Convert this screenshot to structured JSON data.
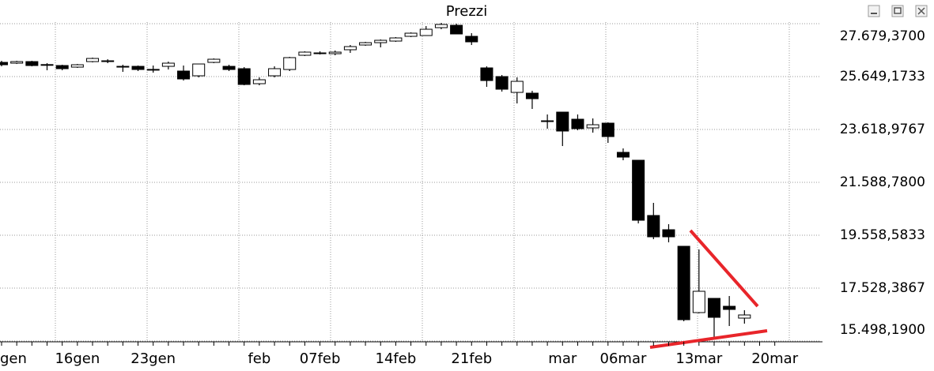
{
  "chart_data": {
    "type": "candlestick",
    "title": "Prezzi",
    "categories": [
      "gen",
      null,
      null,
      null,
      null,
      "16gen",
      null,
      null,
      null,
      null,
      "23gen",
      null,
      null,
      null,
      null,
      null,
      null,
      "feb",
      null,
      null,
      null,
      "07feb",
      null,
      null,
      null,
      null,
      "14feb",
      null,
      null,
      null,
      null,
      "21feb",
      null,
      null,
      null,
      null,
      null,
      "mar",
      null,
      null,
      null,
      "06mar",
      null,
      null,
      null,
      null,
      "13mar",
      null,
      null,
      null,
      null,
      "20mar"
    ],
    "open": [
      26194,
      26164,
      26224,
      26103,
      26073,
      26012,
      26224,
      26255,
      26042,
      26042,
      25921,
      26042,
      25861,
      25679,
      26194,
      26042,
      25952,
      25376,
      25679,
      25921,
      26467,
      26558,
      26527,
      26679,
      26861,
      26951,
      27012,
      27194,
      27224,
      27527,
      27618,
      27194,
      25982,
      25649,
      25042,
      25012,
      23952,
      24285,
      24012,
      23679,
      23861,
      22740,
      22437,
      20316,
      19770,
      19134,
      16589,
      17134,
      16831,
      16377,
      null,
      null
    ],
    "high": [
      26255,
      26255,
      26255,
      26164,
      26103,
      26133,
      26376,
      26315,
      26103,
      26073,
      26073,
      26224,
      26073,
      26133,
      26345,
      26103,
      26012,
      25618,
      26042,
      26406,
      26618,
      26618,
      26648,
      26861,
      26982,
      27073,
      27164,
      27345,
      27588,
      27709,
      27679,
      27315,
      26042,
      25709,
      25618,
      25103,
      24194,
      24285,
      24194,
      24042,
      23891,
      22891,
      22437,
      20801,
      19982,
      19134,
      19013,
      17134,
      17225,
      16680,
      null,
      null
    ],
    "low": [
      26042,
      26133,
      26042,
      25891,
      25891,
      25982,
      26194,
      26164,
      25830,
      25861,
      25800,
      25921,
      25497,
      25618,
      26164,
      25861,
      25315,
      25315,
      25618,
      25861,
      26437,
      26497,
      26467,
      26558,
      26830,
      26770,
      26982,
      27164,
      27224,
      27466,
      27285,
      26861,
      25255,
      25073,
      24618,
      24406,
      23649,
      22982,
      23588,
      23497,
      23103,
      22437,
      20013,
      19407,
      19286,
      16256,
      16558,
      15650,
      16074,
      16165,
      null,
      null
    ],
    "close": [
      26103,
      26224,
      26073,
      26110,
      25952,
      26103,
      26345,
      26250,
      26040,
      25921,
      25925,
      26164,
      25558,
      26133,
      26315,
      25921,
      25346,
      25527,
      25952,
      26376,
      26588,
      26555,
      26588,
      26800,
      26951,
      27042,
      27133,
      27315,
      27466,
      27649,
      27285,
      26982,
      25497,
      25164,
      25467,
      24800,
      23950,
      23558,
      23649,
      23800,
      23346,
      22558,
      20134,
      19498,
      19498,
      16316,
      17407,
      16407,
      16710,
      16498,
      null,
      null
    ],
    "up_color": "#ffffff",
    "down_color": "#000000",
    "ylim": [
      15498.19,
      27740
    ],
    "yticks": [
      {
        "value": 15498.19,
        "label": "15.498,1900"
      },
      {
        "value": 17528.3867,
        "label": "17.528,3867"
      },
      {
        "value": 19558.5833,
        "label": "19.558,5833"
      },
      {
        "value": 21588.78,
        "label": "21.588,7800"
      },
      {
        "value": 23618.9767,
        "label": "23.618,9767"
      },
      {
        "value": 25649.1733,
        "label": "25.649,1733"
      },
      {
        "value": 27679.37,
        "label": "27.679,3700"
      }
    ],
    "grid": true
  }
}
